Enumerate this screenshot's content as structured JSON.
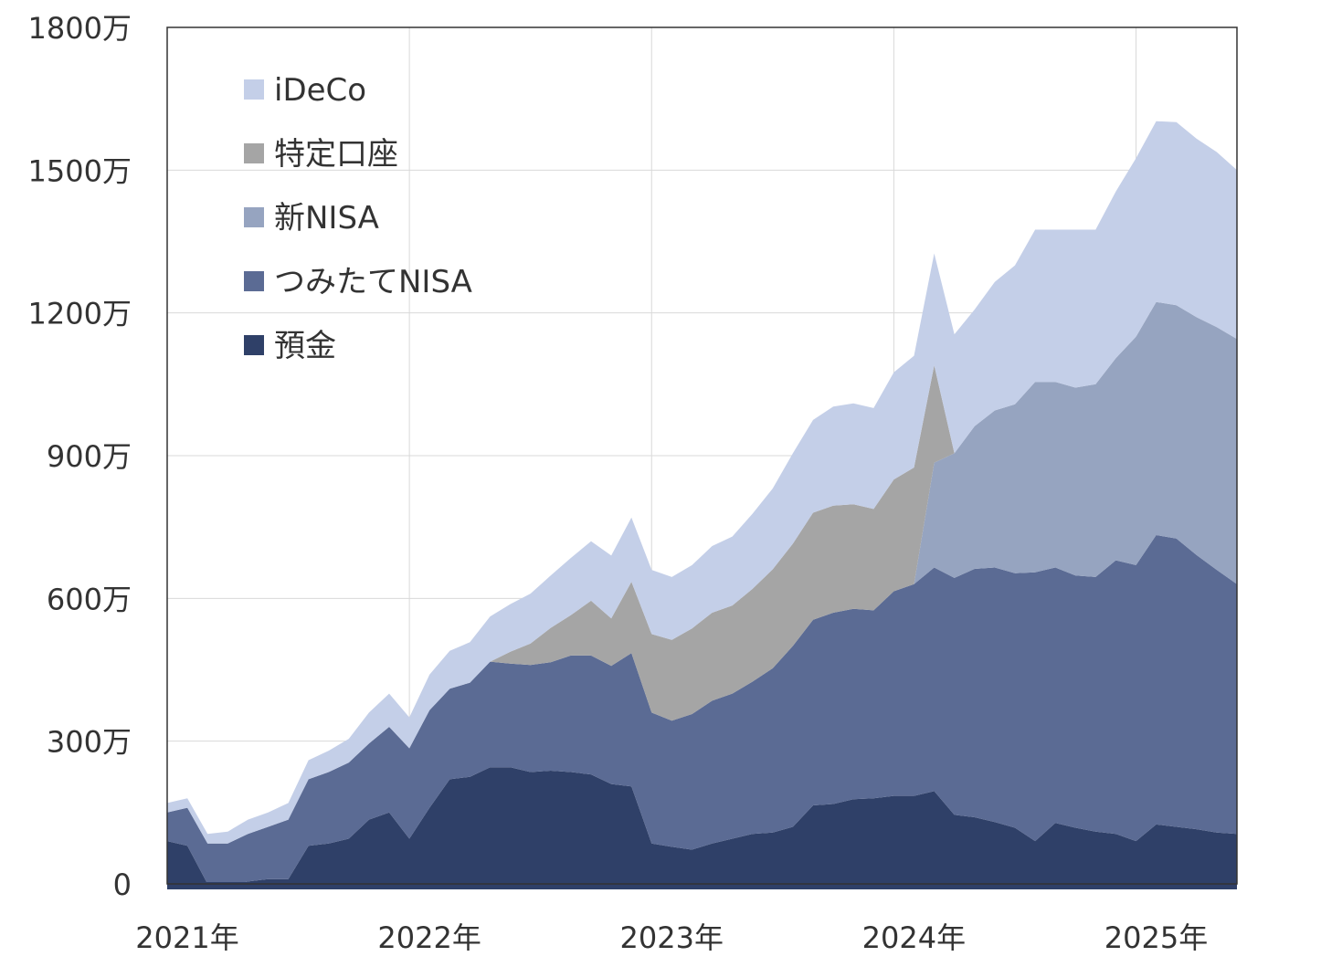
{
  "chart_data": {
    "type": "area",
    "stacked": true,
    "title": "",
    "xlabel": "",
    "ylabel": "",
    "ylim": [
      0,
      1800
    ],
    "grid": true,
    "legend_position": "top-left",
    "y_ticks": [
      0,
      300,
      600,
      900,
      1200,
      1500,
      1800
    ],
    "y_tick_labels": [
      "0",
      "300万",
      "600万",
      "900万",
      "1200万",
      "1500万",
      "1800万"
    ],
    "x_tick_labels": [
      "2021年",
      "2022年",
      "2023年",
      "2024年",
      "2025年"
    ],
    "x": [
      "2021-01",
      "2021-02",
      "2021-03",
      "2021-04",
      "2021-05",
      "2021-06",
      "2021-07",
      "2021-08",
      "2021-09",
      "2021-10",
      "2021-11",
      "2021-12",
      "2022-01",
      "2022-02",
      "2022-03",
      "2022-04",
      "2022-05",
      "2022-06",
      "2022-07",
      "2022-08",
      "2022-09",
      "2022-10",
      "2022-11",
      "2022-12",
      "2023-01",
      "2023-02",
      "2023-03",
      "2023-04",
      "2023-05",
      "2023-06",
      "2023-07",
      "2023-08",
      "2023-09",
      "2023-10",
      "2023-11",
      "2023-12",
      "2024-01",
      "2024-02",
      "2024-03",
      "2024-04",
      "2024-05",
      "2024-06",
      "2024-07",
      "2024-08",
      "2024-09",
      "2024-10",
      "2024-11",
      "2024-12",
      "2025-01",
      "2025-02",
      "2025-03",
      "2025-04",
      "2025-05",
      "2025-06"
    ],
    "series": [
      {
        "name": "預金",
        "color": "#2f4068",
        "values": [
          90,
          80,
          0,
          -5,
          5,
          10,
          10,
          80,
          85,
          95,
          135,
          150,
          95,
          160,
          220,
          225,
          245,
          245,
          235,
          238,
          235,
          230,
          210,
          205,
          85,
          78,
          72,
          85,
          95,
          105,
          108,
          120,
          165,
          168,
          178,
          180,
          185,
          185,
          195,
          145,
          140,
          130,
          118,
          90,
          128,
          118,
          110,
          105,
          90,
          125,
          120,
          115,
          108,
          105
        ]
      },
      {
        "name": "つみたてNISA",
        "color": "#5b6b94",
        "values": [
          60,
          80,
          85,
          90,
          100,
          110,
          125,
          140,
          150,
          160,
          160,
          180,
          190,
          205,
          190,
          198,
          222,
          218,
          225,
          228,
          245,
          250,
          248,
          280,
          275,
          265,
          285,
          300,
          305,
          320,
          345,
          380,
          390,
          402,
          400,
          395,
          430,
          445,
          470,
          498,
          522,
          535,
          535,
          565,
          537,
          530,
          535,
          575,
          580,
          608,
          606,
          576,
          552,
          525
        ]
      },
      {
        "name": "新NISA",
        "color": "#96a4c0",
        "values": [
          0,
          0,
          0,
          0,
          0,
          0,
          0,
          0,
          0,
          0,
          0,
          0,
          0,
          0,
          0,
          0,
          0,
          0,
          0,
          0,
          0,
          0,
          0,
          0,
          0,
          0,
          0,
          0,
          0,
          0,
          0,
          0,
          0,
          0,
          0,
          0,
          0,
          0,
          220,
          262,
          300,
          330,
          355,
          400,
          390,
          395,
          405,
          425,
          480,
          490,
          490,
          500,
          510,
          515
        ]
      },
      {
        "name": "特定口座",
        "color": "#a5a5a5",
        "values": [
          0,
          0,
          0,
          0,
          0,
          0,
          0,
          0,
          0,
          0,
          0,
          0,
          0,
          0,
          0,
          0,
          0,
          25,
          45,
          72,
          85,
          115,
          100,
          150,
          165,
          170,
          180,
          185,
          185,
          195,
          208,
          215,
          225,
          225,
          220,
          213,
          235,
          245,
          205,
          0,
          0,
          0,
          0,
          0,
          0,
          0,
          0,
          0,
          0,
          0,
          0,
          0,
          0,
          0
        ]
      },
      {
        "name": "iDeCo",
        "color": "#c4cfe8",
        "values": [
          20,
          20,
          20,
          25,
          30,
          30,
          35,
          40,
          45,
          50,
          65,
          70,
          65,
          75,
          80,
          85,
          95,
          100,
          105,
          110,
          120,
          125,
          132,
          135,
          135,
          132,
          133,
          140,
          145,
          158,
          170,
          190,
          195,
          208,
          212,
          212,
          225,
          235,
          235,
          250,
          245,
          270,
          292,
          320,
          320,
          332,
          325,
          350,
          375,
          380,
          385,
          375,
          368,
          355
        ]
      }
    ]
  }
}
